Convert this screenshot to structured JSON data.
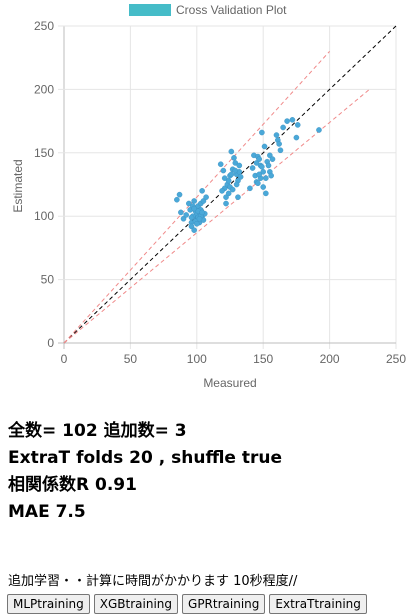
{
  "chart_data": {
    "type": "scatter",
    "title": "",
    "legend": {
      "label": "Cross Validation Plot",
      "color": "#45bcc8",
      "position": "top"
    },
    "xlabel": "Measured",
    "ylabel": "Estimated",
    "xlim": [
      0,
      250
    ],
    "ylim": [
      0,
      250
    ],
    "xticks": [
      "0",
      "50",
      "100",
      "150",
      "200",
      "250"
    ],
    "yticks": [
      "0",
      "50",
      "100",
      "150",
      "200",
      "250"
    ],
    "grid": true,
    "point_color": "#4aa8d8",
    "reference_lines": [
      {
        "style": "dashed",
        "color": "#000000",
        "from": [
          0,
          0
        ],
        "to": [
          250,
          250
        ]
      },
      {
        "style": "dashed",
        "color": "#f08a8a",
        "from": [
          0,
          0
        ],
        "to": [
          200,
          230
        ]
      },
      {
        "style": "dashed",
        "color": "#f08a8a",
        "from": [
          0,
          0
        ],
        "to": [
          230,
          200
        ]
      }
    ],
    "points": [
      [
        85,
        113
      ],
      [
        87,
        117
      ],
      [
        88,
        103
      ],
      [
        90,
        98
      ],
      [
        92,
        101
      ],
      [
        94,
        110
      ],
      [
        95,
        105
      ],
      [
        96,
        95
      ],
      [
        96,
        92
      ],
      [
        97,
        108
      ],
      [
        98,
        89
      ],
      [
        98,
        112
      ],
      [
        99,
        100
      ],
      [
        99,
        104
      ],
      [
        100,
        97
      ],
      [
        100,
        101
      ],
      [
        100,
        106
      ],
      [
        101,
        108
      ],
      [
        101,
        99
      ],
      [
        102,
        103
      ],
      [
        102,
        95
      ],
      [
        103,
        110
      ],
      [
        103,
        105
      ],
      [
        104,
        100
      ],
      [
        104,
        120
      ],
      [
        105,
        112
      ],
      [
        105,
        97
      ],
      [
        106,
        102
      ],
      [
        107,
        115
      ],
      [
        97,
        100
      ],
      [
        99,
        96
      ],
      [
        101,
        104
      ],
      [
        103,
        100
      ],
      [
        100,
        94
      ],
      [
        98,
        106
      ],
      [
        102,
        98
      ],
      [
        104,
        103
      ],
      [
        96,
        99
      ],
      [
        118,
        141
      ],
      [
        120,
        136
      ],
      [
        121,
        122
      ],
      [
        122,
        115
      ],
      [
        122,
        110
      ],
      [
        123,
        125
      ],
      [
        124,
        118
      ],
      [
        125,
        132
      ],
      [
        126,
        133
      ],
      [
        126,
        151
      ],
      [
        127,
        137
      ],
      [
        128,
        146
      ],
      [
        129,
        142
      ],
      [
        130,
        133
      ],
      [
        131,
        128
      ],
      [
        131,
        115
      ],
      [
        132,
        140
      ],
      [
        132,
        135
      ],
      [
        133,
        131
      ],
      [
        119,
        120
      ],
      [
        121,
        130
      ],
      [
        124,
        128
      ],
      [
        125,
        123
      ],
      [
        127,
        121
      ],
      [
        129,
        136
      ],
      [
        130,
        125
      ],
      [
        140,
        122
      ],
      [
        142,
        138
      ],
      [
        143,
        148
      ],
      [
        144,
        132
      ],
      [
        145,
        142
      ],
      [
        145,
        127
      ],
      [
        146,
        147
      ],
      [
        147,
        145
      ],
      [
        148,
        140
      ],
      [
        148,
        130
      ],
      [
        149,
        166
      ],
      [
        150,
        123
      ],
      [
        150,
        135
      ],
      [
        151,
        155
      ],
      [
        152,
        118
      ],
      [
        153,
        143
      ],
      [
        155,
        135
      ],
      [
        155,
        148
      ],
      [
        156,
        132
      ],
      [
        157,
        145
      ],
      [
        146,
        126
      ],
      [
        149,
        139
      ],
      [
        152,
        130
      ],
      [
        154,
        140
      ],
      [
        147,
        133
      ],
      [
        160,
        164
      ],
      [
        161,
        160
      ],
      [
        162,
        157
      ],
      [
        163,
        152
      ],
      [
        165,
        170
      ],
      [
        168,
        175
      ],
      [
        172,
        176
      ],
      [
        175,
        162
      ],
      [
        176,
        172
      ],
      [
        192,
        168
      ]
    ]
  },
  "stats": {
    "line1": "全数= 102 追加数= 3",
    "line2": "ExtraT folds 20 , shuffle true",
    "line3": "相関係数R 0.91",
    "line4": "MAE 7.5"
  },
  "note": "追加学習・・計算に時間がかかります 10秒程度//",
  "buttons": {
    "mlp": "MLPtraining",
    "xgb": "XGBtraining",
    "gpr": "GPRtraining",
    "extrat": "ExtraTtraining"
  }
}
